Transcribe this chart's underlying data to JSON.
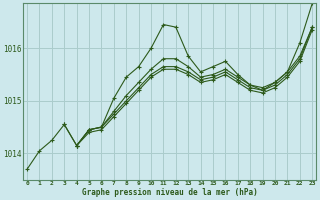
{
  "title": "Graphe pression niveau de la mer (hPa)",
  "bg_color": "#cde8ec",
  "grid_color": "#aacccc",
  "line_color": "#2d5a1b",
  "series": [
    {
      "x": [
        0,
        1,
        2,
        3,
        4,
        5,
        6,
        7,
        8,
        9,
        10,
        11,
        12,
        13,
        14,
        15,
        16,
        17,
        18,
        19,
        20,
        21,
        22,
        23
      ],
      "y": [
        1013.7,
        1014.05,
        1014.25,
        1014.55,
        1014.15,
        1014.45,
        1014.5,
        1015.05,
        1015.45,
        1015.65,
        1016.0,
        1016.45,
        1016.4,
        1015.85,
        1015.55,
        1015.65,
        1015.75,
        1015.5,
        1015.3,
        1015.2,
        1015.35,
        1015.55,
        1016.1,
        1016.85
      ]
    },
    {
      "x": [
        3,
        4,
        5,
        6,
        7,
        8,
        9,
        10,
        11,
        12,
        13,
        14,
        15,
        16,
        17,
        18,
        19,
        20,
        21,
        22,
        23
      ],
      "y": [
        1014.55,
        1014.15,
        1014.45,
        1014.5,
        1014.8,
        1015.1,
        1015.35,
        1015.6,
        1015.8,
        1015.8,
        1015.65,
        1015.45,
        1015.5,
        1015.6,
        1015.45,
        1015.3,
        1015.25,
        1015.35,
        1015.55,
        1015.85,
        1016.4
      ]
    },
    {
      "x": [
        4,
        5,
        6,
        7,
        8,
        9,
        10,
        11,
        12,
        13,
        14,
        15,
        16,
        17,
        18,
        19,
        20,
        21,
        22,
        23
      ],
      "y": [
        1014.15,
        1014.45,
        1014.5,
        1014.75,
        1015.0,
        1015.25,
        1015.5,
        1015.65,
        1015.65,
        1015.55,
        1015.4,
        1015.45,
        1015.55,
        1015.4,
        1015.25,
        1015.2,
        1015.3,
        1015.5,
        1015.8,
        1016.4
      ]
    },
    {
      "x": [
        4,
        5,
        6,
        7,
        8,
        9,
        10,
        11,
        12,
        13,
        14,
        15,
        16,
        17,
        18,
        19,
        20,
        21,
        22,
        23
      ],
      "y": [
        1014.15,
        1014.4,
        1014.45,
        1014.7,
        1014.95,
        1015.2,
        1015.45,
        1015.6,
        1015.6,
        1015.5,
        1015.35,
        1015.4,
        1015.5,
        1015.35,
        1015.2,
        1015.15,
        1015.25,
        1015.45,
        1015.75,
        1016.35
      ]
    }
  ],
  "ylim": [
    1013.5,
    1016.85
  ],
  "xlim": [
    -0.3,
    23.3
  ],
  "yticks": [
    1014,
    1015,
    1016
  ],
  "xticks": [
    0,
    1,
    2,
    3,
    4,
    5,
    6,
    7,
    8,
    9,
    10,
    11,
    12,
    13,
    14,
    15,
    16,
    17,
    18,
    19,
    20,
    21,
    22,
    23
  ],
  "xtick_labels": [
    "0",
    "1",
    "2",
    "3",
    "4",
    "5",
    "6",
    "7",
    "8",
    "9",
    "10",
    "11",
    "12",
    "13",
    "14",
    "15",
    "16",
    "17",
    "18",
    "19",
    "20",
    "21",
    "22",
    "23"
  ],
  "figsize": [
    3.2,
    2.0
  ],
  "dpi": 100
}
